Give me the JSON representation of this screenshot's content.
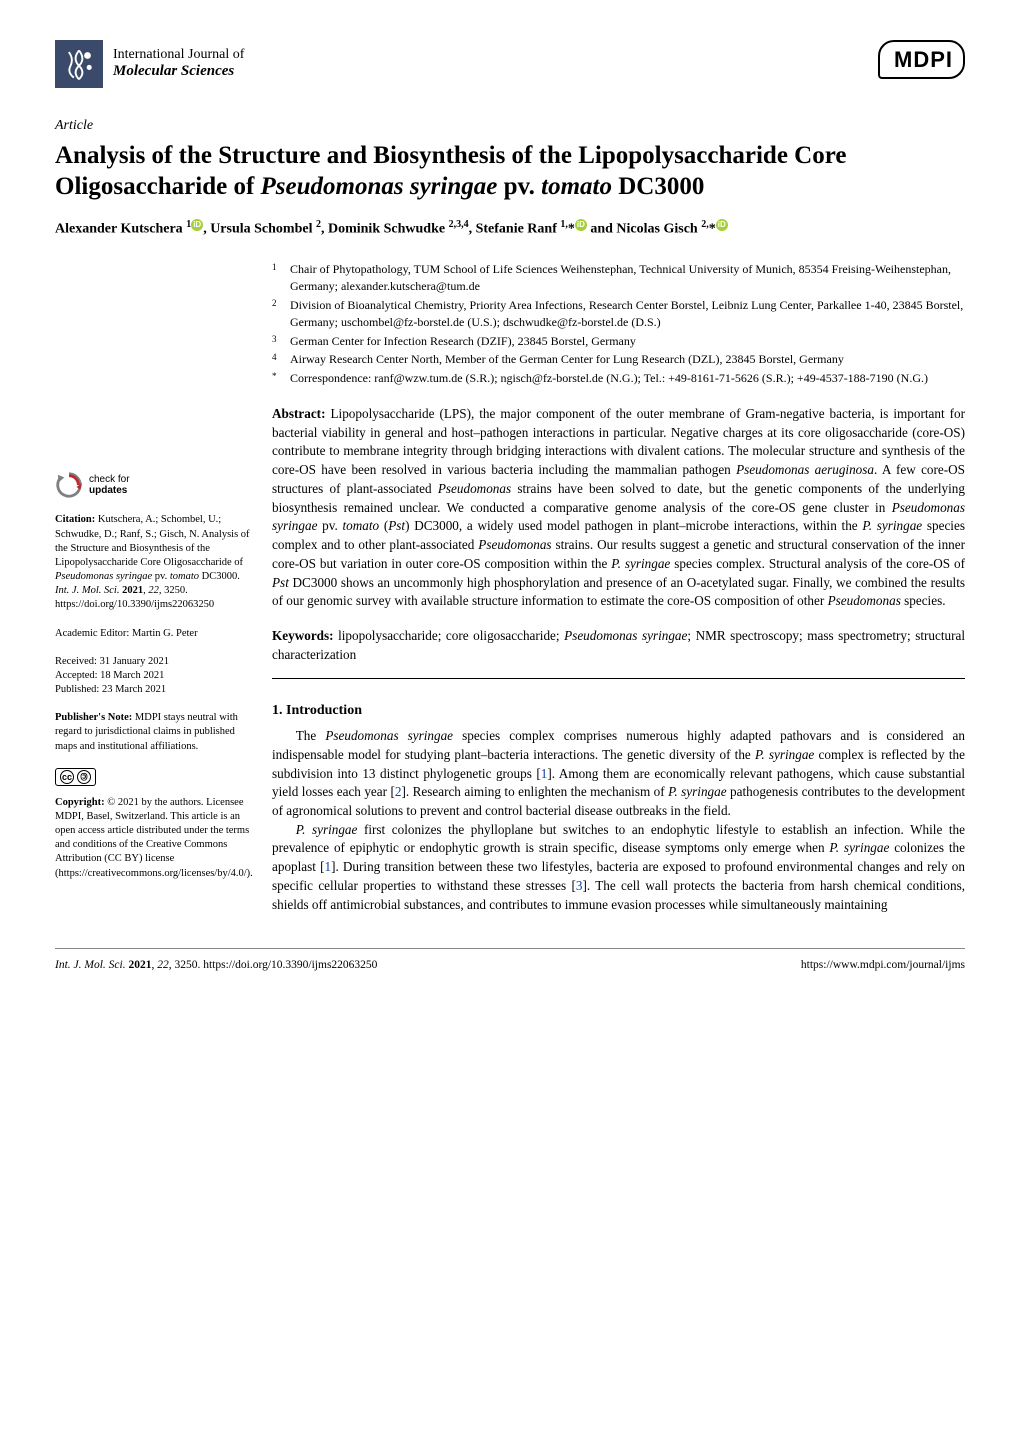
{
  "journal": {
    "line1": "International Journal of",
    "line2": "Molecular Sciences",
    "publisher_logo": "MDPI"
  },
  "article": {
    "type": "Article",
    "title_html": "Analysis of the Structure and Biosynthesis of the Lipopolysaccharide Core Oligosaccharide of <i>Pseudomonas syringae</i> pv. <i>tomato</i> DC3000",
    "authors_html": "Alexander Kutschera <sup>1</sup><span class='orcid'>iD</span>, Ursula Schombel <sup>2</sup>, Dominik Schwudke <sup>2,3,4</sup>, Stefanie Ranf <sup>1,</sup>*<span class='orcid'>iD</span> and Nicolas Gisch <sup>2,</sup>*<span class='orcid'>iD</span>"
  },
  "affiliations": [
    {
      "num": "1",
      "text": "Chair of Phytopathology, TUM School of Life Sciences Weihenstephan, Technical University of Munich, 85354 Freising-Weihenstephan, Germany; alexander.kutschera@tum.de"
    },
    {
      "num": "2",
      "text": "Division of Bioanalytical Chemistry, Priority Area Infections, Research Center Borstel, Leibniz Lung Center, Parkallee 1-40, 23845 Borstel, Germany; uschombel@fz-borstel.de (U.S.); dschwudke@fz-borstel.de (D.S.)"
    },
    {
      "num": "3",
      "text": "German Center for Infection Research (DZIF), 23845 Borstel, Germany"
    },
    {
      "num": "4",
      "text": "Airway Research Center North, Member of the German Center for Lung Research (DZL), 23845 Borstel, Germany"
    },
    {
      "num": "*",
      "text": "Correspondence: ranf@wzw.tum.de (S.R.); ngisch@fz-borstel.de (N.G.); Tel.: +49-8161-71-5626 (S.R.); +49-4537-188-7190 (N.G.)"
    }
  ],
  "abstract": {
    "label": "Abstract:",
    "text_html": "Lipopolysaccharide (LPS), the major component of the outer membrane of Gram-negative bacteria, is important for bacterial viability in general and host–pathogen interactions in particular. Negative charges at its core oligosaccharide (core-OS) contribute to membrane integrity through bridging interactions with divalent cations. The molecular structure and synthesis of the core-OS have been resolved in various bacteria including the mammalian pathogen <i>Pseudomonas aeruginosa</i>. A few core-OS structures of plant-associated <i>Pseudomonas</i> strains have been solved to date, but the genetic components of the underlying biosynthesis remained unclear. We conducted a comparative genome analysis of the core-OS gene cluster in <i>Pseudomonas syringae</i> pv. <i>tomato</i> (<i>Pst</i>) DC3000, a widely used model pathogen in plant–microbe interactions, within the <i>P. syringae</i> species complex and to other plant-associated <i>Pseudomonas</i> strains. Our results suggest a genetic and structural conservation of the inner core-OS but variation in outer core-OS composition within the <i>P. syringae</i> species complex. Structural analysis of the core-OS of <i>Pst</i> DC3000 shows an uncommonly high phosphorylation and presence of an O-acetylated sugar. Finally, we combined the results of our genomic survey with available structure information to estimate the core-OS composition of other <i>Pseudomonas</i> species."
  },
  "keywords": {
    "label": "Keywords:",
    "text_html": "lipopolysaccharide; core oligosaccharide; <i>Pseudomonas syringae</i>; NMR spectroscopy; mass spectrometry; structural characterization"
  },
  "body": {
    "section_heading": "1. Introduction",
    "para1_html": "The <i>Pseudomonas syringae</i> species complex comprises numerous highly adapted pathovars and is considered an indispensable model for studying plant–bacteria interactions. The genetic diversity of the <i>P. syringae</i> complex is reflected by the subdivision into 13 distinct phylogenetic groups [<span class='ref-link'>1</span>]. Among them are economically relevant pathogens, which cause substantial yield losses each year [<span class='ref-link'>2</span>]. Research aiming to enlighten the mechanism of <i>P. syringae</i> pathogenesis contributes to the development of agronomical solutions to prevent and control bacterial disease outbreaks in the field.",
    "para2_html": "<i>P. syringae</i> first colonizes the phylloplane but switches to an endophytic lifestyle to establish an infection. While the prevalence of epiphytic or endophytic growth is strain specific, disease symptoms only emerge when <i>P. syringae</i> colonizes the apoplast [<span class='ref-link'>1</span>]. During transition between these two lifestyles, bacteria are exposed to profound environmental changes and rely on specific cellular properties to withstand these stresses [<span class='ref-link'>3</span>]. The cell wall protects the bacteria from harsh chemical conditions, shields off antimicrobial substances, and contributes to immune evasion processes while simultaneously maintaining"
  },
  "sidebar": {
    "check_updates": {
      "line1": "check for",
      "line2": "updates"
    },
    "citation": {
      "label": "Citation:",
      "text_html": "Kutschera, A.; Schombel, U.; Schwudke, D.; Ranf, S.; Gisch, N. Analysis of the Structure and Biosynthesis of the Lipopolysaccharide Core Oligosaccharide of <i>Pseudomonas syringae</i> pv. <i>tomato</i> DC3000. <i>Int. J. Mol. Sci.</i> <b>2021</b>, <i>22</i>, 3250. https://doi.org/10.3390/ijms22063250"
    },
    "editor": "Academic Editor: Martin G. Peter",
    "dates": {
      "received": "Received: 31 January 2021",
      "accepted": "Accepted: 18 March 2021",
      "published": "Published: 23 March 2021"
    },
    "publishers_note": {
      "label": "Publisher's Note:",
      "text": "MDPI stays neutral with regard to jurisdictional claims in published maps and institutional affiliations."
    },
    "copyright": {
      "label": "Copyright:",
      "text": "© 2021 by the authors. Licensee MDPI, Basel, Switzerland. This article is an open access article distributed under the terms and conditions of the Creative Commons Attribution (CC BY) license (https://creativecommons.org/licenses/by/4.0/)."
    }
  },
  "footer": {
    "left_html": "<i>Int. J. Mol. Sci.</i> <b>2021</b>, <i>22</i>, 3250. https://doi.org/10.3390/ijms22063250",
    "right": "https://www.mdpi.com/journal/ijms"
  },
  "colors": {
    "ijms_icon_bg": "#3b4a6b",
    "orcid_green": "#a6ce39",
    "link_blue": "#0645ad",
    "check_arrow_red": "#c1272d",
    "check_arrow_gray": "#808080"
  }
}
